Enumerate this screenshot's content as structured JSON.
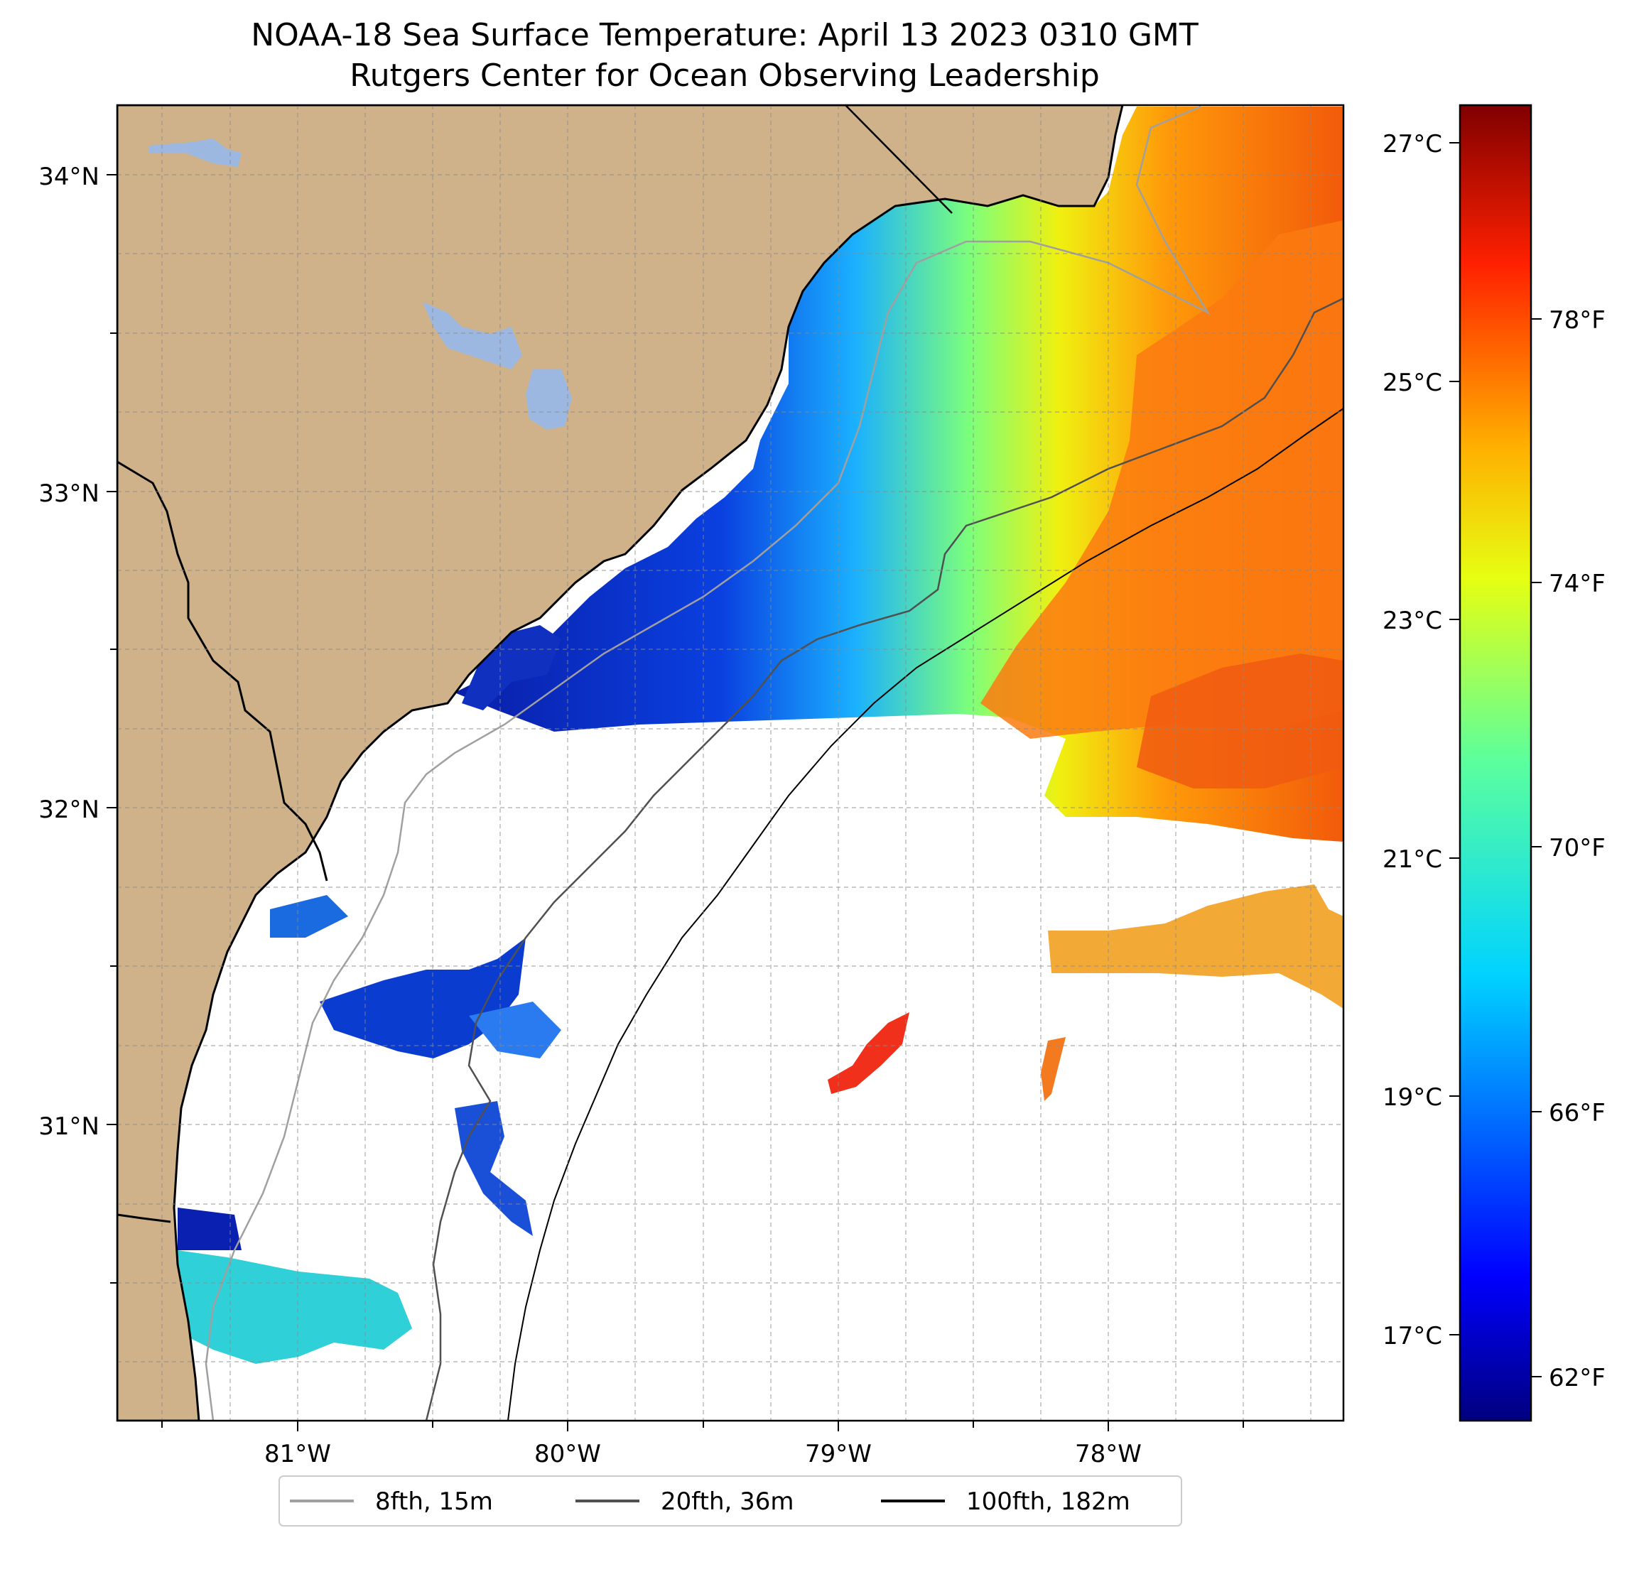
{
  "title": {
    "line1": "NOAA-18 Sea Surface Temperature: April 13 2023 0310 GMT",
    "line2": "Rutgers Center for Ocean Observing Leadership"
  },
  "map": {
    "lon_labels": [
      "81°W",
      "80°W",
      "79°W",
      "78°W"
    ],
    "lat_labels": [
      "34°N",
      "33°N",
      "32°N",
      "31°N"
    ]
  },
  "colorbar": {
    "celsius_labels": [
      "27°C",
      "25°C",
      "23°C",
      "21°C",
      "19°C",
      "17°C"
    ],
    "fahrenheit_labels": [
      "78°F",
      "74°F",
      "70°F",
      "66°F",
      "62°F"
    ]
  },
  "legend": {
    "items": [
      {
        "label": "8fth, 15m",
        "color": "#a0a0a0"
      },
      {
        "label": "20fth, 36m",
        "color": "#505050"
      },
      {
        "label": "100fth, 182m",
        "color": "#000000"
      }
    ]
  },
  "colors": {
    "land": "#cfb28a",
    "lake": "#9db8e0",
    "cold": "#0a1ea8",
    "warm": "#f46a0e"
  }
}
